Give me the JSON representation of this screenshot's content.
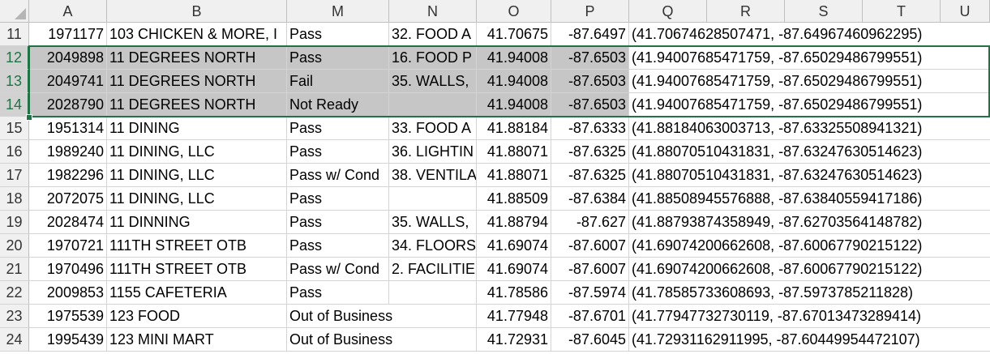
{
  "columns": [
    "A",
    "B",
    "M",
    "N",
    "O",
    "P",
    "Q",
    "R",
    "S",
    "T",
    "U"
  ],
  "rows": [
    {
      "num": "11",
      "a": "1971177",
      "b": "103 CHICKEN & MORE, I",
      "m": "Pass",
      "n": "32. FOOD A",
      "o": "41.70675",
      "p": "-87.6497",
      "q": "(41.70674628507471, -87.64967460962295)"
    },
    {
      "num": "12",
      "a": "2049898",
      "b": "11 DEGREES NORTH",
      "m": "Pass",
      "n": "16. FOOD P",
      "o": "41.94008",
      "p": "-87.6503",
      "q": "(41.94007685471759, -87.65029486799551)"
    },
    {
      "num": "13",
      "a": "2049741",
      "b": "11 DEGREES NORTH",
      "m": "Fail",
      "n": "35. WALLS,",
      "o": "41.94008",
      "p": "-87.6503",
      "q": "(41.94007685471759, -87.65029486799551)"
    },
    {
      "num": "14",
      "a": "2028790",
      "b": "11 DEGREES NORTH",
      "m": "Not Ready",
      "n": "",
      "o": "41.94008",
      "p": "-87.6503",
      "q": "(41.94007685471759, -87.65029486799551)"
    },
    {
      "num": "15",
      "a": "1951314",
      "b": "11 DINING",
      "m": "Pass",
      "n": "33. FOOD A",
      "o": "41.88184",
      "p": "-87.6333",
      "q": "(41.88184063003713, -87.63325508941321)"
    },
    {
      "num": "16",
      "a": "1989240",
      "b": "11 DINING,  LLC",
      "m": "Pass",
      "n": "36. LIGHTIN",
      "o": "41.88071",
      "p": "-87.6325",
      "q": "(41.88070510431831, -87.63247630514623)"
    },
    {
      "num": "17",
      "a": "1982296",
      "b": "11 DINING,  LLC",
      "m": "Pass w/ Cond",
      "n": "38. VENTILA",
      "o": "41.88071",
      "p": "-87.6325",
      "q": "(41.88070510431831, -87.63247630514623)"
    },
    {
      "num": "18",
      "a": "2072075",
      "b": "11 DINING, LLC",
      "m": "Pass",
      "n": "",
      "o": "41.88509",
      "p": "-87.6384",
      "q": "(41.88508945576888, -87.63840559417186)"
    },
    {
      "num": "19",
      "a": "2028474",
      "b": "11 DINNING",
      "m": "Pass",
      "n": "35. WALLS,",
      "o": "41.88794",
      "p": "-87.627",
      "q": "(41.88793874358949, -87.62703564148782)"
    },
    {
      "num": "20",
      "a": "1970721",
      "b": "111TH STREET OTB",
      "m": "Pass",
      "n": "34. FLOORS",
      "o": "41.69074",
      "p": "-87.6007",
      "q": "(41.69074200662608, -87.60067790215122)"
    },
    {
      "num": "21",
      "a": "1970496",
      "b": "111TH STREET OTB",
      "m": "Pass w/ Cond",
      "n": "2. FACILITIE",
      "o": "41.69074",
      "p": "-87.6007",
      "q": "(41.69074200662608, -87.60067790215122)"
    },
    {
      "num": "22",
      "a": "2009853",
      "b": "1155 CAFETERIA",
      "m": "Pass",
      "n": "",
      "o": "41.78586",
      "p": "-87.5974",
      "q": "(41.78585733608693, -87.5973785211828)"
    },
    {
      "num": "23",
      "a": "1975539",
      "b": "123 FOOD",
      "m": "Out of Business",
      "n": "",
      "o": "41.77948",
      "p": "-87.6701",
      "q": "(41.77947732730119, -87.67013473289414)"
    },
    {
      "num": "24",
      "a": "1995439",
      "b": "123 MINI MART",
      "m": "Out of Business",
      "n": "",
      "o": "41.72931",
      "p": "-87.6045",
      "q": "(41.72931162911995, -87.60449954472107)"
    }
  ],
  "selected_rows": [
    "12",
    "13",
    "14"
  ],
  "colors": {
    "accent": "#217346",
    "selection": "#c6c6c6",
    "header": "#f0f0f0"
  }
}
